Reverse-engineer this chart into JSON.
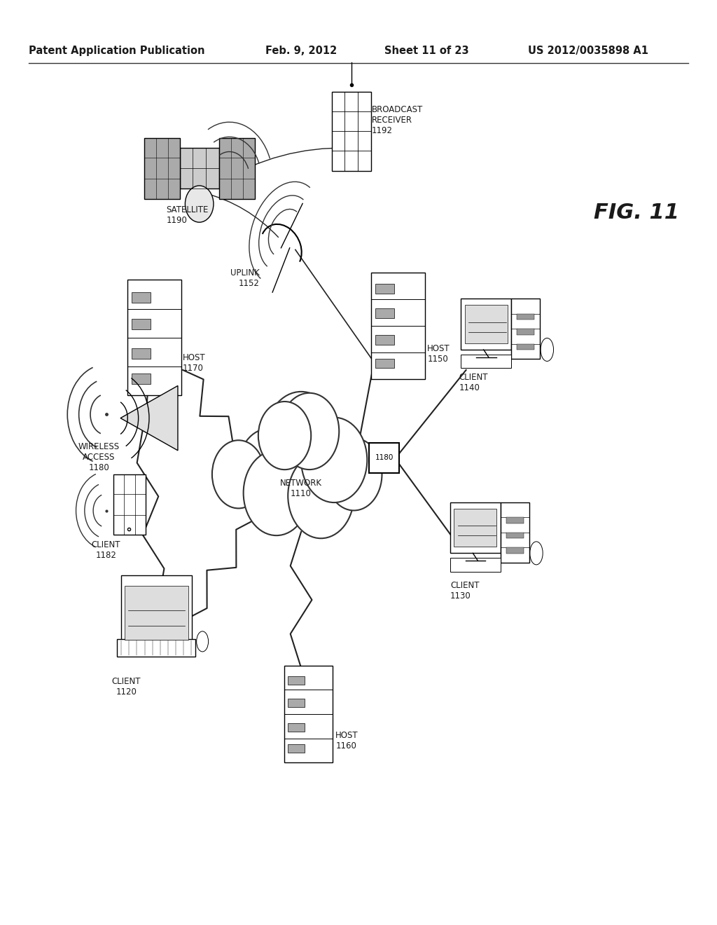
{
  "title_left": "Patent Application Publication",
  "title_date": "Feb. 9, 2012",
  "title_sheet": "Sheet 11 of 23",
  "title_patent": "US 2012/0035898 A1",
  "fig_label": "FIG. 11",
  "background_color": "#ffffff",
  "line_color": "#000000",
  "text_color": "#1a1a1a"
}
